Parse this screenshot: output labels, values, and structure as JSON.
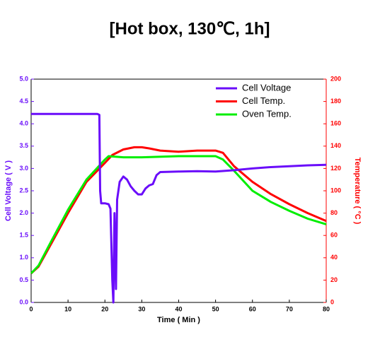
{
  "chart_data": {
    "type": "line",
    "title": "[Hot box, 130℃, 1h]",
    "x_label": "Time ( Min )",
    "y_label": "Cell Voltage ( V )",
    "y2_label": "Temperature ( °C )",
    "xlim": [
      0,
      80
    ],
    "xticks": [
      0,
      10,
      20,
      30,
      40,
      50,
      60,
      70,
      80
    ],
    "ylim": [
      0,
      5
    ],
    "yticks": [
      {
        "value": 0,
        "label": "0.0"
      },
      0.5,
      {
        "value": 1,
        "label": "1.0"
      },
      1.5,
      {
        "value": 2,
        "label": "2.0"
      },
      2.5,
      {
        "value": 3,
        "label": "3.0"
      },
      3.5,
      {
        "value": 4,
        "label": "4.0"
      },
      4.5,
      {
        "value": 5,
        "label": "5.0"
      }
    ],
    "y2lim": [
      0,
      200
    ],
    "y2ticks": [
      0,
      20,
      40,
      60,
      80,
      100,
      120,
      140,
      160,
      180,
      200
    ],
    "legend": "upper right",
    "series": [
      {
        "name": "Cell Voltage",
        "color": "#6a0dfa",
        "axis": "y",
        "x": [
          0,
          18,
          18.5,
          18.7,
          19,
          20,
          21,
          21.5,
          22,
          22.3,
          22.6,
          23,
          23.3,
          24,
          25,
          26,
          27,
          28,
          29,
          30,
          31,
          32,
          33,
          34,
          35,
          40,
          45,
          50,
          55,
          60,
          65,
          70,
          75,
          80
        ],
        "values": [
          4.22,
          4.22,
          4.2,
          2.5,
          2.22,
          2.22,
          2.2,
          2.1,
          0.5,
          0.0,
          2.0,
          0.3,
          2.3,
          2.7,
          2.82,
          2.75,
          2.6,
          2.5,
          2.42,
          2.42,
          2.55,
          2.62,
          2.65,
          2.85,
          2.92,
          2.93,
          2.94,
          2.93,
          2.96,
          3.0,
          3.03,
          3.05,
          3.07,
          3.08
        ]
      },
      {
        "name": "Cell Temp.",
        "color": "#ff0000",
        "axis": "y2",
        "x": [
          0,
          2,
          5,
          10,
          15,
          20,
          22,
          25,
          28,
          30,
          32,
          35,
          40,
          45,
          50,
          52,
          55,
          60,
          65,
          70,
          75,
          80
        ],
        "values": [
          26,
          32,
          50,
          80,
          108,
          125,
          132,
          137,
          139,
          139,
          138,
          136,
          135,
          136,
          136,
          134,
          122,
          108,
          97,
          88,
          80,
          73
        ]
      },
      {
        "name": "Oven Temp.",
        "color": "#00ee00",
        "axis": "y2",
        "x": [
          0,
          2,
          5,
          10,
          15,
          20,
          21,
          25,
          30,
          40,
          50,
          52,
          55,
          60,
          65,
          70,
          75,
          80
        ],
        "values": [
          26,
          33,
          52,
          83,
          110,
          128,
          131,
          130,
          130,
          131,
          131,
          128,
          118,
          100,
          90,
          82,
          75,
          70
        ]
      }
    ]
  }
}
